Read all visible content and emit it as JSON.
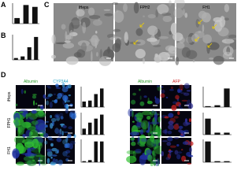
{
  "panels": {
    "a": "A",
    "b": "B",
    "c": "C",
    "d": "D"
  },
  "phase_contrast": {
    "titles": [
      "iHeps",
      "FPH2",
      "FH1"
    ]
  },
  "stains_left": [
    "Albumin",
    "CYP3A4"
  ],
  "stains_right": [
    "Albumin",
    "AFP"
  ],
  "rows": [
    "iHeps",
    "FPH1",
    "FH1"
  ],
  "charts": [
    {
      "values": [
        0.3,
        1.0,
        0.9
      ],
      "ylim": [
        0,
        1.1
      ],
      "color": "#111111"
    },
    {
      "values": [
        0.08,
        0.15,
        0.55,
        1.0
      ],
      "ylim": [
        0,
        1.1
      ],
      "color": "#111111"
    },
    {
      "values": [
        0.3,
        0.35,
        0.7,
        1.0
      ],
      "ylim": [
        0,
        1.1
      ],
      "color": "#111111"
    },
    {
      "values": [
        0.3,
        0.6,
        0.8,
        1.0
      ],
      "ylim": [
        0,
        1.1
      ],
      "color": "#111111"
    },
    {
      "values": [
        0.05,
        0.1,
        1.0,
        1.0
      ],
      "ylim": [
        0,
        1.1
      ],
      "color": "#111111"
    },
    {
      "values": [
        0.05,
        0.1,
        1.0
      ],
      "ylim": [
        0,
        1.1
      ],
      "color": "#111111"
    },
    {
      "values": [
        0.8,
        0.1,
        0.1
      ],
      "ylim": [
        0,
        1.1
      ],
      "color": "#111111"
    },
    {
      "values": [
        1.0,
        0.05,
        0.05
      ],
      "ylim": [
        0,
        1.1
      ],
      "color": "#111111"
    }
  ]
}
